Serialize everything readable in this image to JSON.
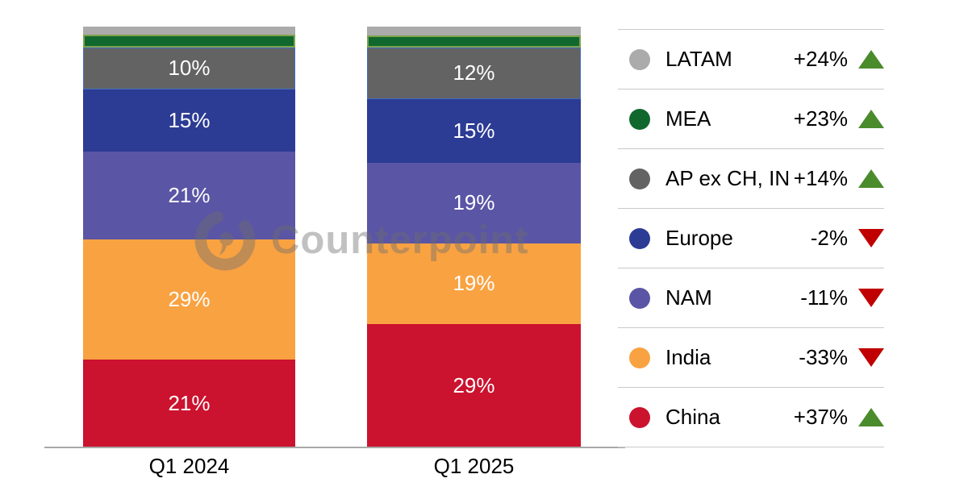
{
  "watermark": {
    "text": "Counterpoint"
  },
  "colors": {
    "trend_up": "#4a8b2c",
    "trend_down": "#c00000",
    "axis_line": "#a9a9a9",
    "legend_divider": "#c9c9c9",
    "bar_label_text": "#ffffff",
    "legend_text": "#000000"
  },
  "chart_data": {
    "type": "bar",
    "subtype": "100-percent-stacked-column",
    "categories": [
      "Q1 2024",
      "Q1 2025"
    ],
    "stack_order_top_to_bottom": [
      "LATAM",
      "MEA",
      "AP ex CH, IN",
      "Europe",
      "NAM",
      "India",
      "China"
    ],
    "series": [
      {
        "name": "LATAM",
        "color": "#ababab",
        "values": [
          2,
          2
        ],
        "bar_labels": [
          "",
          ""
        ],
        "yoy_change": "+24%",
        "trend": "up"
      },
      {
        "name": "MEA",
        "color": "#10682f",
        "values": [
          3,
          3
        ],
        "bar_labels": [
          "",
          ""
        ],
        "yoy_change": "+23%",
        "trend": "up",
        "border_color": "#7ea24b",
        "border_px": 2
      },
      {
        "name": "AP ex CH, IN",
        "color": "#636363",
        "values": [
          10,
          12
        ],
        "bar_labels": [
          "10%",
          "12%"
        ],
        "yoy_change": "+14%",
        "trend": "up",
        "border_color": "#3e6fc0",
        "border_px": 1
      },
      {
        "name": "Europe",
        "color": "#2c3b94",
        "values": [
          15,
          15
        ],
        "bar_labels": [
          "15%",
          "15%"
        ],
        "yoy_change": "-2%",
        "trend": "down"
      },
      {
        "name": "NAM",
        "color": "#5a55a5",
        "values": [
          21,
          19
        ],
        "bar_labels": [
          "21%",
          "19%"
        ],
        "yoy_change": "-11%",
        "trend": "down"
      },
      {
        "name": "India",
        "color": "#f9a242",
        "values": [
          29,
          19
        ],
        "bar_labels": [
          "29%",
          "19%"
        ],
        "yoy_change": "-33%",
        "trend": "down"
      },
      {
        "name": "China",
        "color": "#cb122e",
        "values": [
          21,
          29
        ],
        "bar_labels": [
          "21%",
          "29%"
        ],
        "yoy_change": "+37%",
        "trend": "up"
      }
    ],
    "legend_position": "right",
    "grid": false,
    "ylim": [
      0,
      100
    ]
  }
}
